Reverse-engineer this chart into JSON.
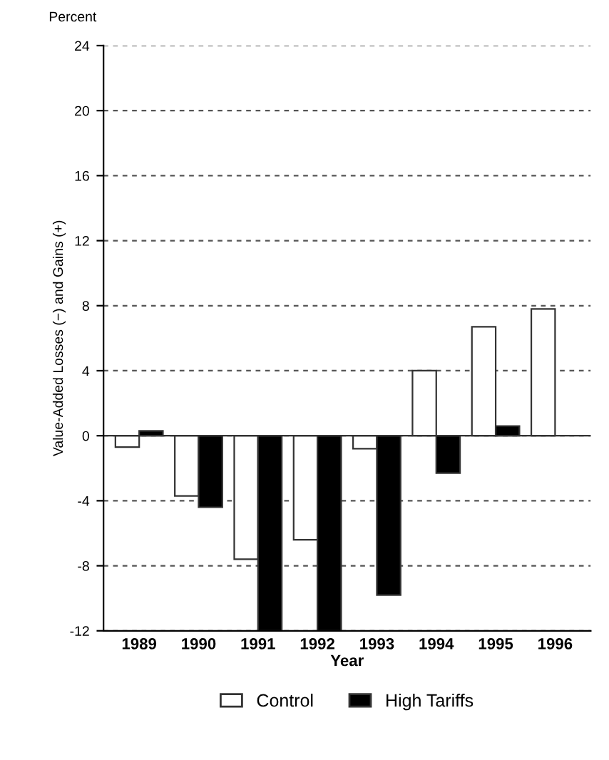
{
  "chart_data": {
    "type": "bar",
    "xlabel": "Year",
    "ylabel": "Value-Added Losses (−) and Gains (+)",
    "annotations": [
      "Percent"
    ],
    "categories": [
      "1989",
      "1990",
      "1991",
      "1992",
      "1993",
      "1994",
      "1995",
      "1996"
    ],
    "series": [
      {
        "name": "Control",
        "color": "#ffffff",
        "values": [
          -0.7,
          -3.7,
          -7.6,
          -6.4,
          -0.8,
          4.0,
          6.7,
          7.8
        ]
      },
      {
        "name": "High Tariffs",
        "color": "#000000",
        "values": [
          0.3,
          -4.4,
          -12,
          -12,
          -9.8,
          -2.3,
          0.6,
          null
        ]
      }
    ],
    "ylim": [
      -12,
      24
    ],
    "yticks": [
      -12,
      -8,
      -4,
      0,
      4,
      8,
      12,
      16,
      20,
      24
    ],
    "grid": "y",
    "legend": "bottom"
  }
}
